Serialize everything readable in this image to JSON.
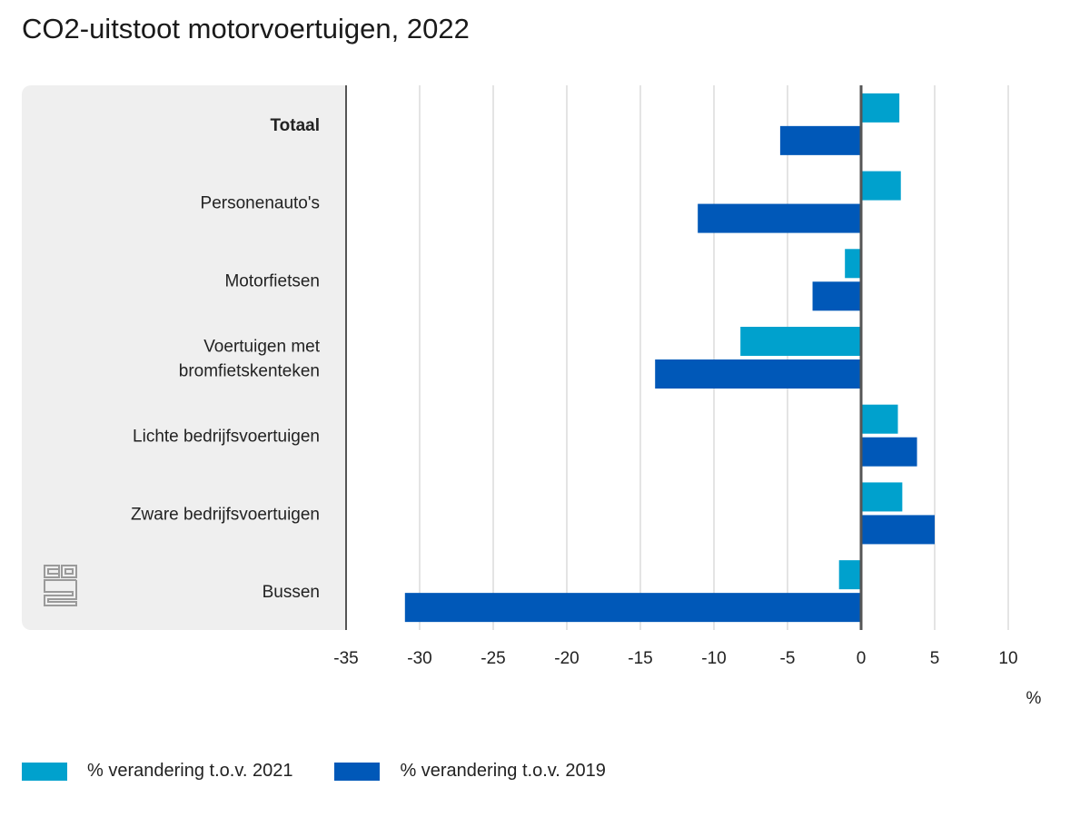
{
  "chart_data": {
    "type": "bar",
    "orientation": "horizontal",
    "title": "CO2-uitstoot motorvoertuigen, 2022",
    "xlabel": "%",
    "ylabel": "",
    "xlim": [
      -35,
      10
    ],
    "ticks": [
      -35,
      -30,
      -25,
      -20,
      -15,
      -10,
      -5,
      0,
      5,
      10
    ],
    "grid": true,
    "legend_position": "bottom-left",
    "categories": [
      "Totaal",
      "Personenauto's",
      "Motorfietsen",
      "Voertuigen met bromfietskenteken",
      "Lichte bedrijfsvoertuigen",
      "Zware bedrijfsvoertuigen",
      "Bussen"
    ],
    "category_lines": [
      [
        "Totaal"
      ],
      [
        "Personenauto's"
      ],
      [
        "Motorfietsen"
      ],
      [
        "Voertuigen met",
        "bromfietskenteken"
      ],
      [
        "Lichte bedrijfsvoertuigen"
      ],
      [
        "Zware bedrijfsvoertuigen"
      ],
      [
        "Bussen"
      ]
    ],
    "bold_categories": [
      "Totaal"
    ],
    "series": [
      {
        "name": "% verandering t.o.v. 2021",
        "color": "#00a1cd",
        "values": [
          2.6,
          2.7,
          -1.1,
          -8.2,
          2.5,
          2.8,
          -1.5
        ]
      },
      {
        "name": "% verandering t.o.v. 2019",
        "color": "#0058b8",
        "values": [
          -5.5,
          -11.1,
          -3.3,
          -14.0,
          3.8,
          5.0,
          -31.0
        ]
      }
    ]
  }
}
